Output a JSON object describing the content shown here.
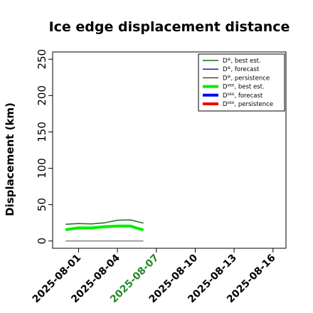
{
  "chart_data": {
    "type": "line",
    "title": "Ice edge displacement distance",
    "xlabel": "",
    "ylabel": "Displacement (km)",
    "ylim": [
      -10,
      260
    ],
    "xlim": [
      "2025-07-30",
      "2025-08-17"
    ],
    "yticks": [
      "0",
      "50",
      "100",
      "150",
      "200",
      "250"
    ],
    "xticks": [
      "2025-08-01",
      "2025-08-04",
      "2025-08-07",
      "2025-08-10",
      "2025-08-13",
      "2025-08-16"
    ],
    "highlight_tick": "2025-08-07",
    "highlight_color": "#228b22",
    "grid": false,
    "legend_position": "top-right",
    "series": [
      {
        "name": "Dᴵᴱ, best est.",
        "color": "#1a6b1a",
        "width": 1.5,
        "x": [
          "2025-07-31",
          "2025-08-01",
          "2025-08-02",
          "2025-08-03",
          "2025-08-04",
          "2025-08-05",
          "2025-08-06"
        ],
        "values": [
          23,
          24,
          23.5,
          25,
          28.5,
          29,
          24.5
        ]
      },
      {
        "name": "Dᴵᴱ, forecast",
        "color": "#1f1fb4",
        "width": 1.5,
        "x": [],
        "values": []
      },
      {
        "name": "Dᴵᴱ, persistence",
        "color": "#6e3b3b",
        "width": 1.5,
        "x": [
          "2025-07-31",
          "2025-08-06"
        ],
        "values": [
          0,
          0
        ]
      },
      {
        "name": "Dᴵᴵᴱᴱ, best est.",
        "color": "#00ee00",
        "width": 4,
        "x": [
          "2025-07-31",
          "2025-08-01",
          "2025-08-02",
          "2025-08-03",
          "2025-08-04",
          "2025-08-05",
          "2025-08-06"
        ],
        "values": [
          15.5,
          18,
          18,
          19.5,
          20.5,
          20.5,
          15
        ]
      },
      {
        "name": "Dᴵᴵᴱᴱ, forecast",
        "color": "#0000ee",
        "width": 4,
        "x": [],
        "values": []
      },
      {
        "name": "Dᴵᴵᴱᴱ, persistence",
        "color": "#ee0000",
        "width": 4,
        "x": [],
        "values": []
      }
    ],
    "persistence_color": "#888888"
  }
}
